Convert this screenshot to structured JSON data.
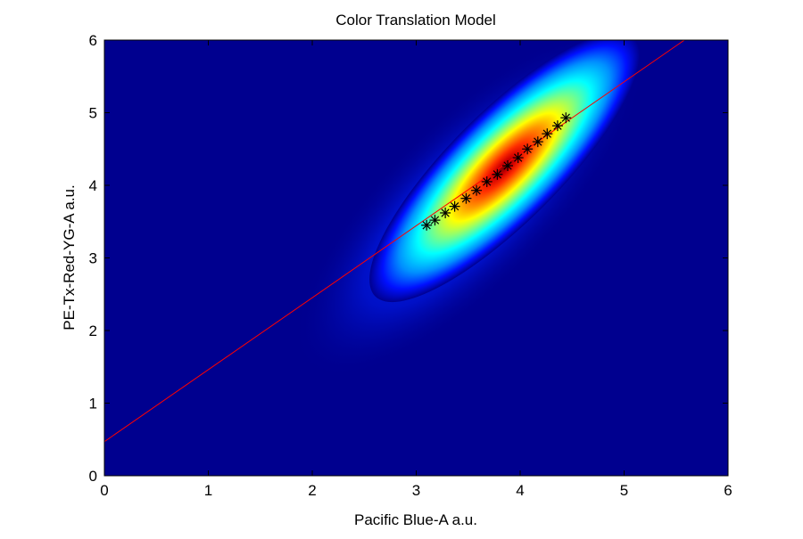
{
  "chart_data": {
    "type": "heatmap",
    "title": "Color Translation Model",
    "xlabel": "Pacific Blue-A a.u.",
    "ylabel": "PE-Tx-Red-YG-A a.u.",
    "xlim": [
      0,
      6
    ],
    "ylim": [
      0,
      6
    ],
    "xticks": [
      "0",
      "1",
      "2",
      "3",
      "4",
      "5",
      "6"
    ],
    "yticks": [
      "0",
      "1",
      "2",
      "3",
      "4",
      "5",
      "6"
    ],
    "grid": false,
    "legend": "none",
    "colormap": [
      "#00008f",
      "#0000ff",
      "#00ffff",
      "#ffff00",
      "#ff0000",
      "#800000"
    ],
    "density_background": "#00008f",
    "density_centre": [
      3.85,
      4.25
    ],
    "density_axis_slope": 1.0,
    "fit_line": {
      "label": "",
      "color": "#ff0000",
      "x": [
        0,
        5.58
      ],
      "y": [
        0.47,
        6.0
      ]
    },
    "bin_medians": {
      "marker": "asterisk",
      "color": "#000000",
      "x": [
        3.1,
        3.18,
        3.28,
        3.37,
        3.48,
        3.58,
        3.68,
        3.78,
        3.88,
        3.98,
        4.07,
        4.17,
        4.26,
        4.36,
        4.44
      ],
      "y": [
        3.45,
        3.52,
        3.62,
        3.71,
        3.82,
        3.93,
        4.05,
        4.15,
        4.27,
        4.38,
        4.5,
        4.6,
        4.71,
        4.82,
        4.93
      ]
    }
  }
}
